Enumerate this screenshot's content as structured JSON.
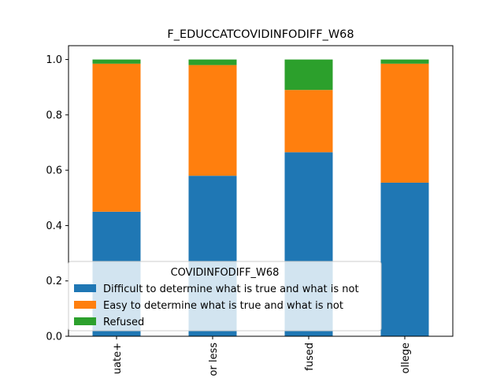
{
  "chart_data": {
    "type": "bar",
    "stacked": true,
    "title": "F_EDUCCATCOVIDINFODIFF_W68",
    "xlabel": "",
    "ylabel": "",
    "categories": [
      "uate+",
      "or less",
      "fused",
      "ollege"
    ],
    "series": [
      {
        "name": "Difficult to determine what is true and what is not",
        "color": "#1f77b4",
        "values": [
          0.45,
          0.58,
          0.665,
          0.555
        ]
      },
      {
        "name": "Easy to determine what is true and what is not",
        "color": "#ff7f0e",
        "values": [
          0.535,
          0.4,
          0.225,
          0.43
        ]
      },
      {
        "name": "Refused",
        "color": "#2ca02c",
        "values": [
          0.015,
          0.02,
          0.11,
          0.015
        ]
      }
    ],
    "ylim": [
      0,
      1.05
    ],
    "yticks": [
      0.0,
      0.2,
      0.4,
      0.6,
      0.8,
      1.0
    ],
    "ytick_labels": [
      "0.0",
      "0.2",
      "0.4",
      "0.6",
      "0.8",
      "1.0"
    ],
    "legend": {
      "title": "COVIDINFODIFF_W68",
      "placement": "lower-left"
    },
    "grid": false
  }
}
